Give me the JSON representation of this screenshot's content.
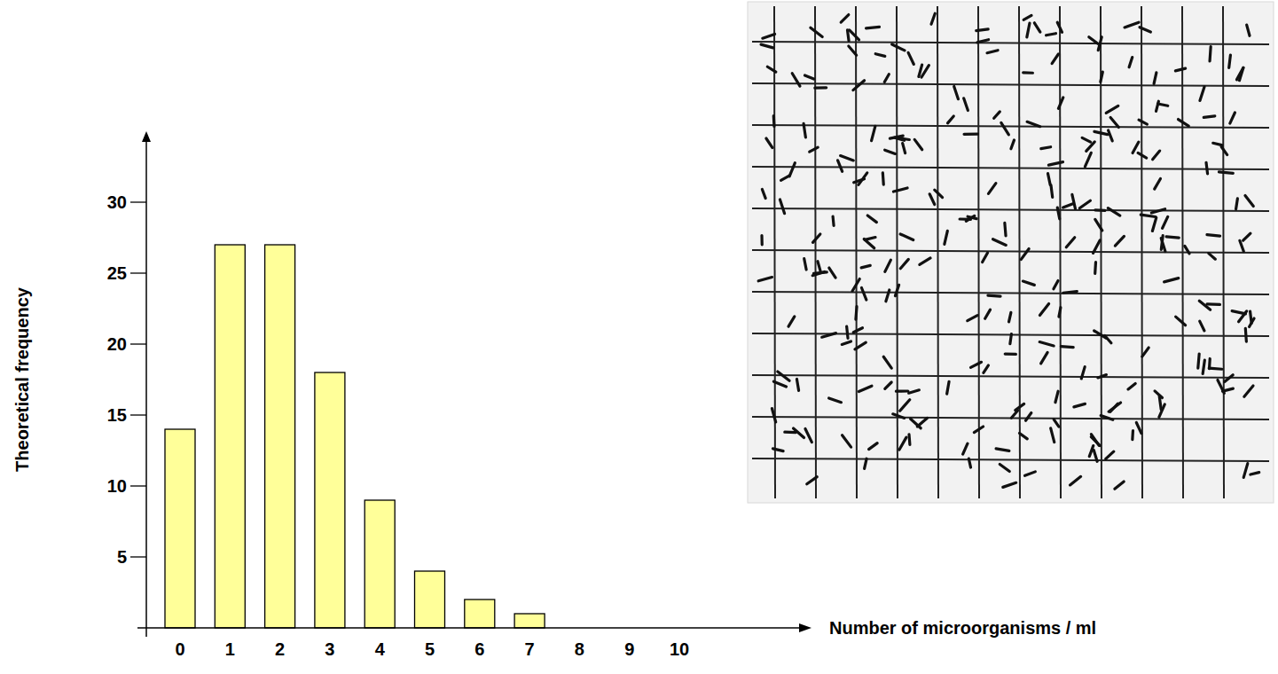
{
  "chart_data": {
    "type": "bar",
    "categories": [
      "0",
      "1",
      "2",
      "3",
      "4",
      "5",
      "6",
      "7",
      "8",
      "9",
      "10"
    ],
    "values": [
      14,
      27,
      27,
      18,
      9,
      4,
      2,
      1,
      0,
      0,
      0
    ],
    "color": "#ffff99",
    "xlabel": "Number of microorganisms / ml",
    "ylabel": "Theoretical frequency",
    "ylim": [
      0,
      35
    ],
    "yticks": [
      5,
      10,
      15,
      20,
      25,
      30
    ],
    "grid": false
  }
}
